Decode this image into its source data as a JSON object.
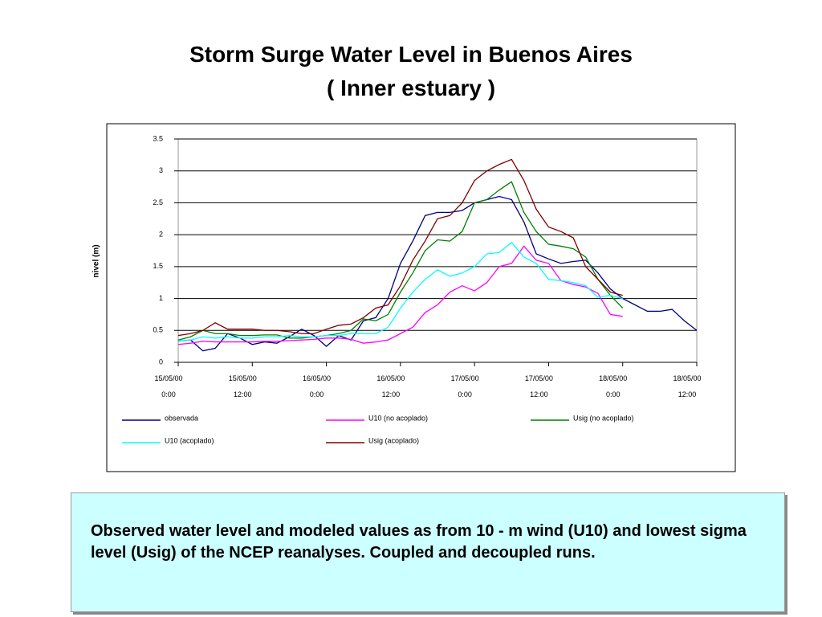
{
  "chart_data": {
    "type": "line",
    "title": "Storm Surge Water Level in Buenos Aires",
    "subtitle": "( Inner estuary )",
    "ylabel": "nivel (m)",
    "x": [
      0,
      2,
      4,
      6,
      8,
      10,
      12,
      14,
      16,
      18,
      20,
      22,
      24,
      26,
      28,
      30,
      32,
      34,
      36,
      38,
      40,
      42,
      44,
      46,
      48,
      50,
      52,
      54,
      56,
      58,
      60,
      62,
      64,
      66,
      68,
      70,
      72,
      74,
      76,
      78,
      80,
      82,
      84
    ],
    "xlim": [
      0,
      84
    ],
    "xticks": [
      {
        "value": 0,
        "label": "15/05/00 0:00"
      },
      {
        "value": 12,
        "label": "15/05/00 12:00"
      },
      {
        "value": 24,
        "label": "16/05/00 0:00"
      },
      {
        "value": 36,
        "label": "16/05/00 12:00"
      },
      {
        "value": 48,
        "label": "17/05/00 0:00"
      },
      {
        "value": 60,
        "label": "17/05/00 12:00"
      },
      {
        "value": 72,
        "label": "18/05/00 0:00"
      },
      {
        "value": 84,
        "label": "18/05/00 12:00"
      }
    ],
    "ylim": [
      0,
      3.5
    ],
    "yticks": [
      0,
      0.5,
      1,
      1.5,
      2,
      2.5,
      3,
      3.5
    ],
    "grid": true,
    "series": [
      {
        "name": "observada",
        "color": "#000080",
        "values": [
          0.33,
          0.35,
          0.18,
          0.22,
          0.45,
          0.38,
          0.28,
          0.32,
          0.3,
          0.4,
          0.52,
          0.42,
          0.25,
          0.42,
          0.35,
          0.65,
          0.7,
          1.0,
          1.55,
          1.9,
          2.3,
          2.35,
          2.35,
          2.38,
          2.5,
          2.55,
          2.6,
          2.55,
          2.2,
          1.7,
          1.62,
          1.55,
          1.58,
          1.6,
          1.4,
          1.15,
          1.0,
          0.9,
          0.8,
          0.8,
          0.83,
          0.65,
          0.5
        ]
      },
      {
        "name": "U10 (no acoplado)",
        "color": "#ff00ff",
        "values": [
          0.28,
          0.3,
          0.33,
          0.32,
          0.32,
          0.32,
          0.32,
          0.33,
          0.33,
          0.34,
          0.35,
          0.36,
          0.38,
          0.38,
          0.36,
          0.3,
          0.32,
          0.35,
          0.45,
          0.55,
          0.78,
          0.9,
          1.1,
          1.2,
          1.12,
          1.25,
          1.5,
          1.55,
          1.82,
          1.6,
          1.55,
          1.28,
          1.22,
          1.18,
          1.08,
          0.75,
          0.72,
          null,
          null,
          null,
          null,
          null,
          null
        ]
      },
      {
        "name": "Usig (no acoplado)",
        "color": "#008000",
        "values": [
          0.35,
          0.4,
          0.5,
          0.45,
          0.45,
          0.42,
          0.42,
          0.43,
          0.43,
          0.38,
          0.38,
          0.4,
          0.42,
          0.45,
          0.5,
          0.68,
          0.65,
          0.75,
          1.1,
          1.4,
          1.75,
          1.92,
          1.9,
          2.05,
          2.5,
          2.55,
          2.7,
          2.83,
          2.35,
          2.05,
          1.85,
          1.82,
          1.78,
          1.65,
          1.3,
          1.05,
          0.85,
          null,
          null,
          null,
          null,
          null,
          null
        ]
      },
      {
        "name": "U10 (acoplado)",
        "color": "#00ffff",
        "values": [
          0.33,
          0.35,
          0.4,
          0.38,
          0.4,
          0.38,
          0.38,
          0.4,
          0.4,
          0.42,
          0.4,
          0.4,
          0.42,
          0.42,
          0.45,
          0.45,
          0.45,
          0.55,
          0.85,
          1.1,
          1.3,
          1.45,
          1.35,
          1.4,
          1.5,
          1.7,
          1.72,
          1.88,
          1.65,
          1.55,
          1.3,
          1.28,
          1.25,
          1.2,
          1.02,
          1.05,
          1.0,
          null,
          null,
          null,
          null,
          null,
          null
        ]
      },
      {
        "name": "Usig (acoplado)",
        "color": "#800000",
        "values": [
          0.42,
          0.45,
          0.5,
          0.62,
          0.52,
          0.52,
          0.52,
          0.5,
          0.5,
          0.48,
          0.45,
          0.45,
          0.52,
          0.58,
          0.6,
          0.7,
          0.85,
          0.9,
          1.2,
          1.6,
          1.9,
          2.25,
          2.3,
          2.5,
          2.85,
          3.0,
          3.1,
          3.18,
          2.85,
          2.4,
          2.12,
          2.05,
          1.95,
          1.5,
          1.3,
          1.1,
          1.05,
          null,
          null,
          null,
          null,
          null,
          null
        ]
      }
    ]
  },
  "caption": "Observed water level and modeled values as from 10 - m wind (U10) and lowest sigma level (Usig) of the NCEP reanalyses. Coupled and decoupled runs."
}
